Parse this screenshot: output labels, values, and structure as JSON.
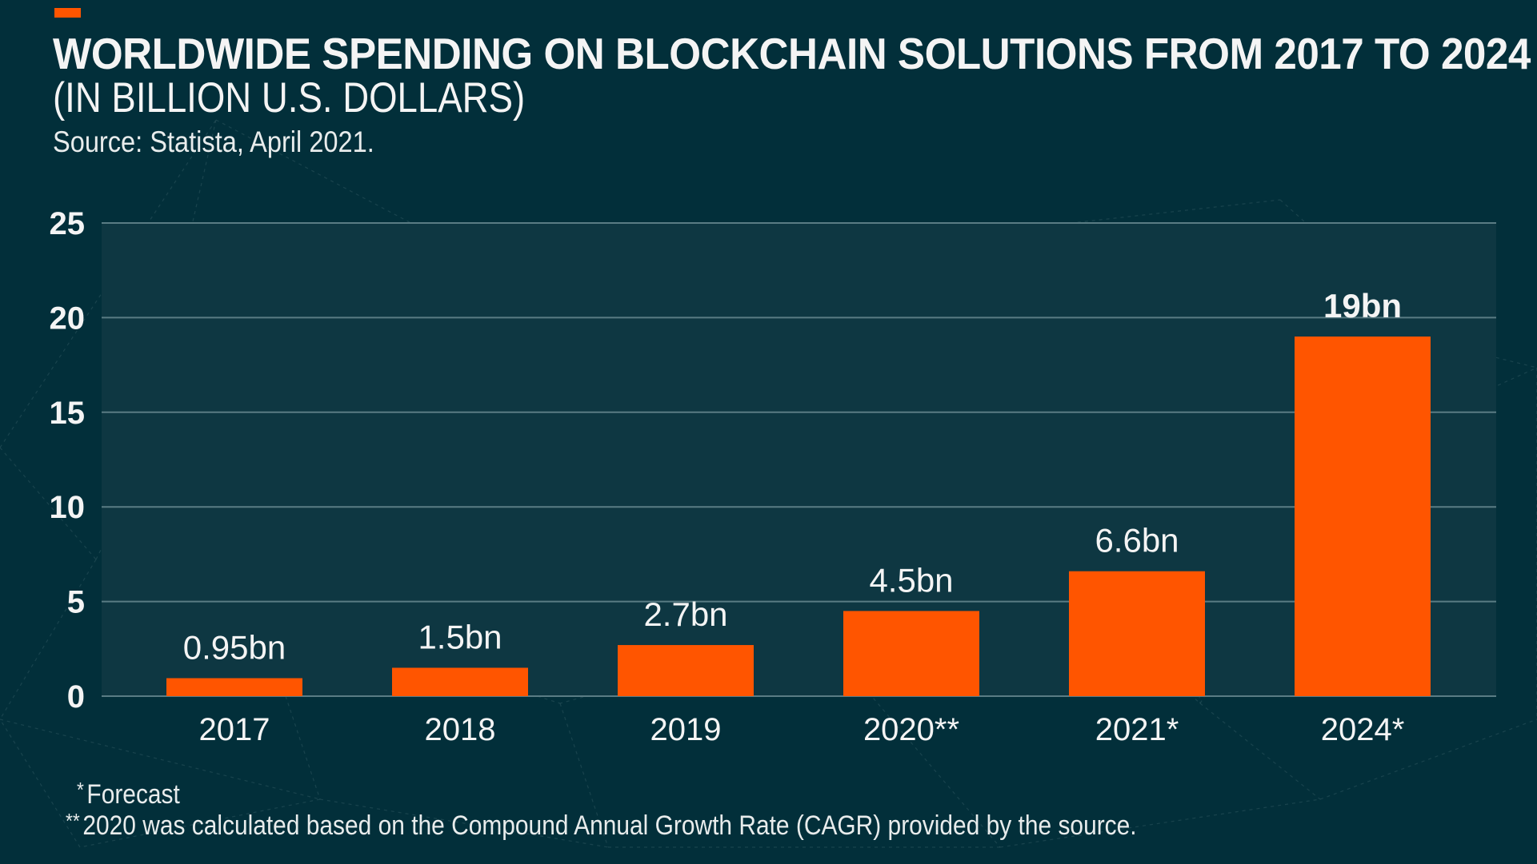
{
  "header": {
    "title": "WORLDWIDE SPENDING ON BLOCKCHAIN SOLUTIONS FROM 2017 TO 2024",
    "subtitle": "(IN BILLION U.S. DOLLARS)",
    "source": "Source: Statista, April 2021."
  },
  "colors": {
    "background": "#022f3a",
    "plot_background": "#0e3742",
    "bar": "#ff5500",
    "accent": "#ff5500",
    "gridline": "#5a7c84",
    "text": "#f4f4f4"
  },
  "footnotes": [
    {
      "mark": "*",
      "text": "Forecast"
    },
    {
      "mark": "**",
      "text": "2020 was calculated based on the Compound Annual Growth Rate (CAGR) provided by the source."
    }
  ],
  "chart_data": {
    "type": "bar",
    "title": "WORLDWIDE SPENDING ON BLOCKCHAIN SOLUTIONS FROM 2017 TO 2024",
    "subtitle": "(IN BILLION U.S. DOLLARS)",
    "categories": [
      "2017",
      "2018",
      "2019",
      "2020**",
      "2021*",
      "2024*"
    ],
    "values": [
      0.95,
      1.5,
      2.7,
      4.5,
      6.6,
      19
    ],
    "data_labels": [
      "0.95bn",
      "1.5bn",
      "2.7bn",
      "4.5bn",
      "6.6bn",
      "19bn"
    ],
    "emphasized_label_index": 5,
    "xlabel": "",
    "ylabel": "",
    "ylim": [
      0,
      25
    ],
    "yticks": [
      0,
      5,
      10,
      15,
      20,
      25
    ],
    "grid": true,
    "legend": "none"
  }
}
